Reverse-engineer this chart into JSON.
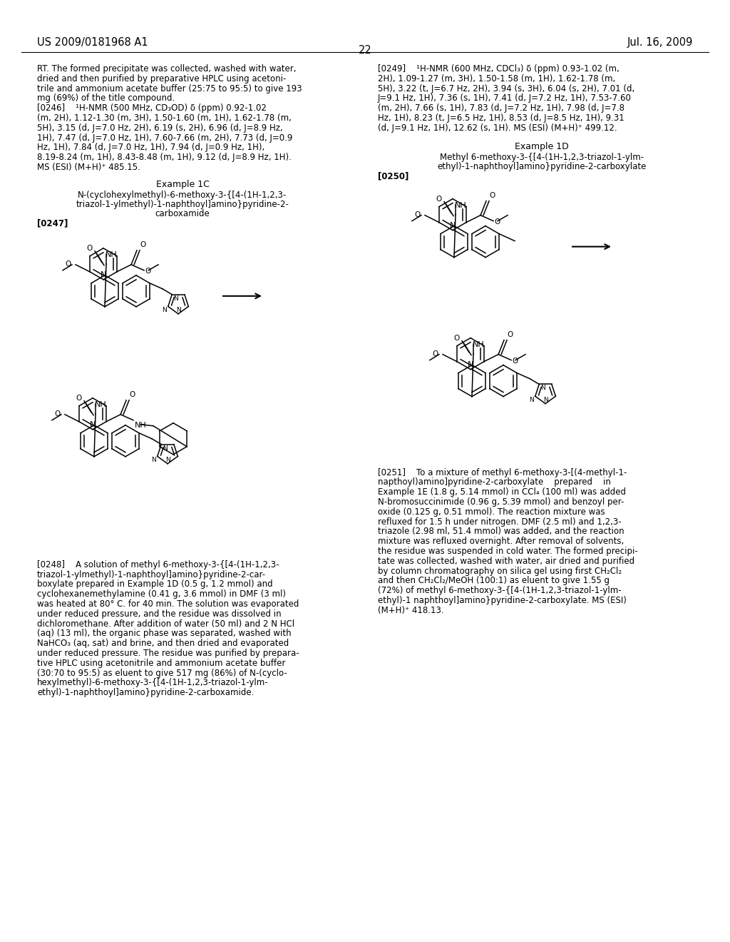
{
  "background_color": "#ffffff",
  "header_left": "US 2009/0181968 A1",
  "header_right": "Jul. 16, 2009",
  "page_number": "22",
  "left_col_lines": [
    "RT. The formed precipitate was collected, washed with water,",
    "dried and then purified by preparative HPLC using acetoni-",
    "trile and ammonium acetate buffer (25:75 to 95:5) to give 193",
    "mg (69%) of the title compound.",
    "[0246]    ¹H-NMR (500 MHz, CD₃OD) δ (ppm) 0.92-1.02",
    "(m, 2H), 1.12-1.30 (m, 3H), 1.50-1.60 (m, 1H), 1.62-1.78 (m,",
    "5H), 3.15 (d, J=7.0 Hz, 2H), 6.19 (s, 2H), 6.96 (d, J=8.9 Hz,",
    "1H), 7.47 (d, J=7.0 Hz, 1H), 7.60-7.66 (m, 2H), 7.73 (d, J=0.9",
    "Hz, 1H), 7.84 (d, J=7.0 Hz, 1H), 7.94 (d, J=0.9 Hz, 1H),",
    "8.19-8.24 (m, 1H), 8.43-8.48 (m, 1H), 9.12 (d, J=8.9 Hz, 1H).",
    "MS (ESI) (M+H)⁺ 485.15."
  ],
  "example1c_title": "Example 1C",
  "example1c_name1": "N-(cyclohexylmethyl)-6-methoxy-3-{[4-(1H-1,2,3-",
  "example1c_name2": "triazol-1-ylmethyl)-1-naphthoyl]amino}pyridine-2-",
  "example1c_name3": "carboxamide",
  "ref247": "[0247]",
  "example1d_title": "Example 1D",
  "example1d_name1": "Methyl 6-methoxy-3-{[4-(1H-1,2,3-triazol-1-ylm-",
  "example1d_name2": "ethyl)-1-naphthoyl]amino}pyridine-2-carboxylate",
  "ref250": "[0250]",
  "right_col_lines": [
    "[0249]    ¹H-NMR (600 MHz, CDCl₃) δ (ppm) 0.93-1.02 (m,",
    "2H), 1.09-1.27 (m, 3H), 1.50-1.58 (m, 1H), 1.62-1.78 (m,",
    "5H), 3.22 (t, J=6.7 Hz, 2H), 3.94 (s, 3H), 6.04 (s, 2H), 7.01 (d,",
    "J=9.1 Hz, 1H), 7.36 (s, 1H), 7.41 (d, J=7.2 Hz, 1H), 7.53-7.60",
    "(m, 2H), 7.66 (s, 1H), 7.83 (d, J=7.2 Hz, 1H), 7.98 (d, J=7.8",
    "Hz, 1H), 8.23 (t, J=6.5 Hz, 1H), 8.53 (d, J=8.5 Hz, 1H), 9.31",
    "(d, J=9.1 Hz, 1H), 12.62 (s, 1H). MS (ESI) (M+H)⁺ 499.12."
  ],
  "para248_lines": [
    "[0248]    A solution of methyl 6-methoxy-3-{[4-(1H-1,2,3-",
    "triazol-1-ylmethyl)-1-naphthoyl]amino}pyridine-2-car-",
    "boxylate prepared in Example 1D (0.5 g, 1.2 mmol) and",
    "cyclohexanemethylamine (0.41 g, 3.6 mmol) in DMF (3 ml)",
    "was heated at 80° C. for 40 min. The solution was evaporated",
    "under reduced pressure, and the residue was dissolved in",
    "dichloromethane. After addition of water (50 ml) and 2 N HCl",
    "(aq) (13 ml), the organic phase was separated, washed with",
    "NaHCO₃ (aq, sat) and brine, and then dried and evaporated",
    "under reduced pressure. The residue was purified by prepara-",
    "tive HPLC using acetonitrile and ammonium acetate buffer",
    "(30:70 to 95:5) as eluent to give 517 mg (86%) of N-(cyclo-",
    "hexylmethyl)-6-methoxy-3-{[4-(1H-1,2,3-triazol-1-ylm-",
    "ethyl)-1-naphthoyl]amino}pyridine-2-carboxamide."
  ],
  "para251_lines": [
    "[0251]    To a mixture of methyl 6-methoxy-3-[(4-methyl-1-",
    "napthoyl)amino]pyridine-2-carboxylate    prepared    in",
    "Example 1E (1.8 g, 5.14 mmol) in CCl₄ (100 ml) was added",
    "N-bromosuccinimide (0.96 g, 5.39 mmol) and benzoyl per-",
    "oxide (0.125 g, 0.51 mmol). The reaction mixture was",
    "refluxed for 1.5 h under nitrogen. DMF (2.5 ml) and 1,2,3-",
    "triazole (2.98 ml, 51.4 mmol) was added, and the reaction",
    "mixture was refluxed overnight. After removal of solvents,",
    "the residue was suspended in cold water. The formed precipi-",
    "tate was collected, washed with water, air dried and purified",
    "by column chromatography on silica gel using first CH₂Cl₂",
    "and then CH₂Cl₂/MeOH (100:1) as eluent to give 1.55 g",
    "(72%) of methyl 6-methoxy-3-{[4-(1H-1,2,3-triazol-1-ylm-",
    "ethyl)-1 naphthoyl]amino}pyridine-2-carboxylate. MS (ESI)",
    "(M+H)⁺ 418.13."
  ]
}
